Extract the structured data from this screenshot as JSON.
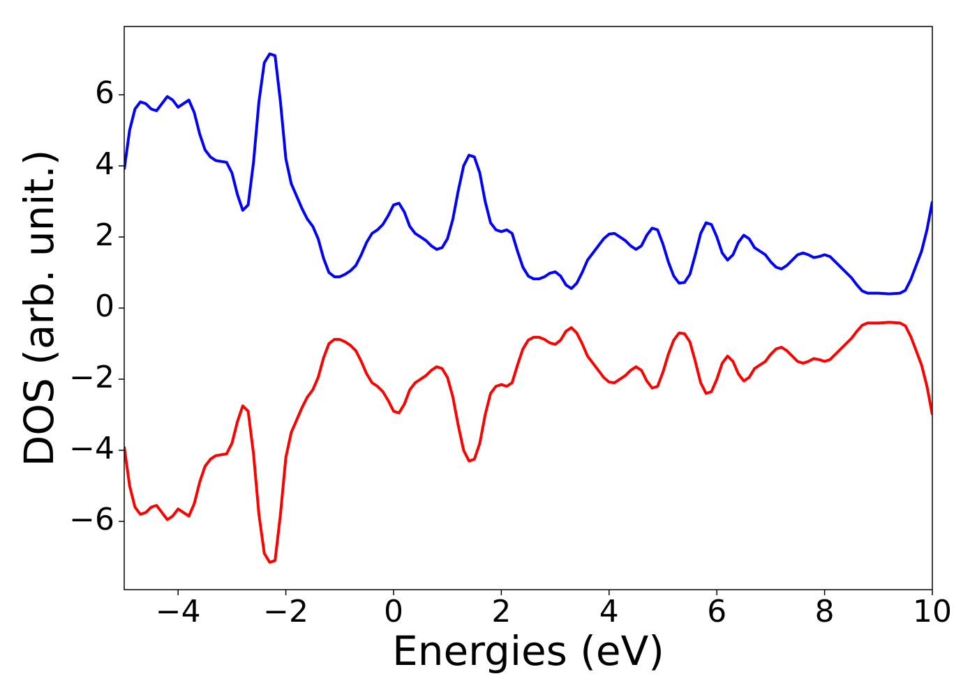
{
  "chart_data": {
    "type": "line",
    "xlabel": "Energies (eV)",
    "ylabel": "DOS (arb. unit.)",
    "x": [
      -5,
      -4.9,
      -4.8,
      -4.7,
      -4.6,
      -4.5,
      -4.4,
      -4.3,
      -4.2,
      -4.1,
      -4,
      -3.9,
      -3.8,
      -3.7,
      -3.6,
      -3.5,
      -3.4,
      -3.3,
      -3.1,
      -3,
      -2.9,
      -2.8,
      -2.7,
      -2.6,
      -2.5,
      -2.4,
      -2.3,
      -2.2,
      -2.1,
      -2,
      -1.9,
      -1.8,
      -1.7,
      -1.6,
      -1.5,
      -1.4,
      -1.3,
      -1.2,
      -1.1,
      -1,
      -0.9,
      -0.8,
      -0.7,
      -0.6,
      -0.5,
      -0.4,
      -0.3,
      -0.2,
      -0.1,
      0,
      0.1,
      0.2,
      0.3,
      0.4,
      0.5,
      0.6,
      0.7,
      0.8,
      0.9,
      1,
      1.1,
      1.2,
      1.3,
      1.4,
      1.5,
      1.6,
      1.7,
      1.8,
      1.9,
      2,
      2.1,
      2.2,
      2.3,
      2.4,
      2.5,
      2.6,
      2.7,
      2.8,
      2.9,
      3,
      3.1,
      3.2,
      3.3,
      3.4,
      3.5,
      3.6,
      3.7,
      3.8,
      3.9,
      4,
      4.1,
      4.2,
      4.3,
      4.4,
      4.5,
      4.6,
      4.7,
      4.8,
      4.9,
      5,
      5.1,
      5.2,
      5.3,
      5.4,
      5.5,
      5.6,
      5.7,
      5.8,
      5.9,
      6,
      6.1,
      6.2,
      6.3,
      6.4,
      6.5,
      6.6,
      6.7,
      6.8,
      6.9,
      7,
      7.1,
      7.2,
      7.3,
      7.4,
      7.5,
      7.6,
      7.7,
      7.8,
      7.9,
      8,
      8.1,
      8.2,
      8.3,
      8.4,
      8.5,
      8.6,
      8.7,
      8.8,
      8.9,
      9,
      9.2,
      9.4,
      9.5,
      9.6,
      9.7,
      9.8,
      9.9,
      10
    ],
    "series": [
      {
        "color": "#0000ff",
        "values": [
          3.9,
          5.0,
          5.6,
          5.8,
          5.75,
          5.6,
          5.55,
          5.75,
          5.95,
          5.85,
          5.65,
          5.75,
          5.85,
          5.5,
          4.9,
          4.45,
          4.25,
          4.15,
          4.1,
          3.8,
          3.2,
          2.75,
          2.9,
          4.1,
          5.8,
          6.9,
          7.15,
          7.1,
          5.8,
          4.2,
          3.5,
          3.15,
          2.8,
          2.5,
          2.3,
          1.95,
          1.4,
          1.0,
          0.88,
          0.88,
          0.95,
          1.05,
          1.2,
          1.5,
          1.85,
          2.1,
          2.2,
          2.35,
          2.6,
          2.9,
          2.95,
          2.7,
          2.3,
          2.1,
          2.0,
          1.9,
          1.75,
          1.65,
          1.7,
          1.95,
          2.5,
          3.3,
          4.0,
          4.3,
          4.25,
          3.8,
          3.0,
          2.4,
          2.2,
          2.15,
          2.2,
          2.1,
          1.6,
          1.15,
          0.9,
          0.82,
          0.82,
          0.88,
          0.98,
          1.02,
          0.9,
          0.65,
          0.55,
          0.7,
          1.0,
          1.35,
          1.55,
          1.75,
          1.95,
          2.08,
          2.1,
          2.0,
          1.9,
          1.75,
          1.65,
          1.75,
          2.05,
          2.25,
          2.2,
          1.8,
          1.3,
          0.9,
          0.7,
          0.72,
          0.95,
          1.5,
          2.1,
          2.4,
          2.35,
          2.0,
          1.55,
          1.35,
          1.5,
          1.85,
          2.05,
          1.95,
          1.7,
          1.6,
          1.5,
          1.3,
          1.15,
          1.1,
          1.2,
          1.35,
          1.5,
          1.55,
          1.5,
          1.42,
          1.45,
          1.5,
          1.45,
          1.3,
          1.15,
          1.0,
          0.85,
          0.65,
          0.48,
          0.42,
          0.42,
          0.42,
          0.4,
          0.42,
          0.5,
          0.8,
          1.2,
          1.6,
          2.2,
          3.0
        ]
      },
      {
        "color": "#ff0000",
        "values": [
          -3.9,
          -5.0,
          -5.6,
          -5.8,
          -5.75,
          -5.6,
          -5.55,
          -5.75,
          -5.95,
          -5.85,
          -5.65,
          -5.75,
          -5.85,
          -5.5,
          -4.9,
          -4.45,
          -4.25,
          -4.15,
          -4.1,
          -3.8,
          -3.2,
          -2.75,
          -2.9,
          -4.1,
          -5.8,
          -6.9,
          -7.15,
          -7.1,
          -5.8,
          -4.2,
          -3.5,
          -3.15,
          -2.8,
          -2.5,
          -2.3,
          -1.95,
          -1.4,
          -1.0,
          -0.88,
          -0.88,
          -0.95,
          -1.05,
          -1.2,
          -1.5,
          -1.85,
          -2.1,
          -2.2,
          -2.35,
          -2.6,
          -2.9,
          -2.95,
          -2.7,
          -2.3,
          -2.1,
          -2.0,
          -1.9,
          -1.75,
          -1.65,
          -1.7,
          -1.95,
          -2.5,
          -3.3,
          -4.0,
          -4.3,
          -4.25,
          -3.8,
          -3.0,
          -2.4,
          -2.2,
          -2.15,
          -2.2,
          -2.1,
          -1.6,
          -1.15,
          -0.9,
          -0.82,
          -0.82,
          -0.88,
          -0.98,
          -1.02,
          -0.9,
          -0.65,
          -0.55,
          -0.7,
          -1.0,
          -1.35,
          -1.55,
          -1.75,
          -1.95,
          -2.08,
          -2.1,
          -2.0,
          -1.9,
          -1.75,
          -1.65,
          -1.75,
          -2.05,
          -2.25,
          -2.2,
          -1.8,
          -1.3,
          -0.9,
          -0.7,
          -0.72,
          -0.95,
          -1.5,
          -2.1,
          -2.4,
          -2.35,
          -2.0,
          -1.55,
          -1.35,
          -1.5,
          -1.85,
          -2.05,
          -1.95,
          -1.7,
          -1.6,
          -1.5,
          -1.3,
          -1.15,
          -1.1,
          -1.2,
          -1.35,
          -1.5,
          -1.55,
          -1.5,
          -1.42,
          -1.45,
          -1.5,
          -1.45,
          -1.3,
          -1.15,
          -1.0,
          -0.85,
          -0.65,
          -0.48,
          -0.42,
          -0.42,
          -0.42,
          -0.4,
          -0.42,
          -0.5,
          -0.8,
          -1.2,
          -1.6,
          -2.2,
          -3.0
        ]
      }
    ],
    "xlim": [
      -5,
      10
    ],
    "xticks": [
      {
        "value": -4,
        "label": "−4"
      },
      {
        "value": -2,
        "label": "−2"
      },
      0,
      2,
      4,
      6,
      8,
      10
    ],
    "ylim": [
      -7.92,
      7.92
    ],
    "yticks": [
      {
        "value": -6,
        "label": "−6"
      },
      {
        "value": -4,
        "label": "−4"
      },
      {
        "value": -2,
        "label": "−2"
      },
      0,
      2,
      4,
      6
    ]
  }
}
